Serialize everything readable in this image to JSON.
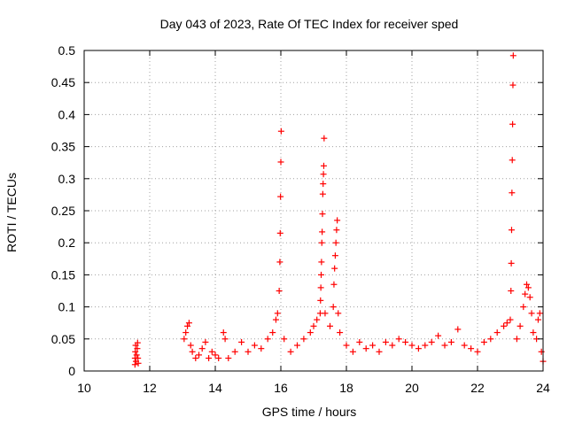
{
  "chart_data": {
    "type": "scatter",
    "title": "Day 043 of 2023, Rate Of TEC Index for receiver sped",
    "xlabel": "GPS time / hours",
    "ylabel": "ROTI / TECUs",
    "xlim": [
      10,
      24
    ],
    "ylim": [
      0,
      0.5
    ],
    "xticks": [
      10,
      12,
      14,
      16,
      18,
      20,
      22,
      24
    ],
    "xtick_labels": [
      "10",
      "12",
      "14",
      "16",
      "18",
      "20",
      "22",
      "24"
    ],
    "yticks": [
      0,
      0.05,
      0.1,
      0.15,
      0.2,
      0.25,
      0.3,
      0.35,
      0.4,
      0.45,
      0.5
    ],
    "ytick_labels": [
      "0",
      "0.05",
      "0.1",
      "0.15",
      "0.2",
      "0.25",
      "0.3",
      "0.35",
      "0.4",
      "0.45",
      "0.5"
    ],
    "grid": true,
    "marker": "+",
    "marker_color": "#ff0000",
    "series": [
      {
        "points": [
          [
            11.55,
            0.01
          ],
          [
            11.55,
            0.02
          ],
          [
            11.56,
            0.03
          ],
          [
            11.57,
            0.04
          ],
          [
            11.58,
            0.015
          ],
          [
            11.6,
            0.025
          ],
          [
            11.62,
            0.035
          ],
          [
            11.63,
            0.044
          ],
          [
            11.64,
            0.02
          ],
          [
            11.65,
            0.012
          ],
          [
            13.05,
            0.05
          ],
          [
            13.1,
            0.06
          ],
          [
            13.15,
            0.07
          ],
          [
            13.2,
            0.075
          ],
          [
            13.25,
            0.04
          ],
          [
            13.3,
            0.03
          ],
          [
            13.4,
            0.02
          ],
          [
            13.5,
            0.025
          ],
          [
            13.6,
            0.035
          ],
          [
            13.7,
            0.045
          ],
          [
            13.8,
            0.02
          ],
          [
            13.9,
            0.03
          ],
          [
            14.0,
            0.025
          ],
          [
            14.1,
            0.02
          ],
          [
            14.25,
            0.06
          ],
          [
            14.3,
            0.05
          ],
          [
            14.4,
            0.02
          ],
          [
            14.6,
            0.03
          ],
          [
            14.8,
            0.045
          ],
          [
            15.0,
            0.03
          ],
          [
            15.2,
            0.04
          ],
          [
            15.4,
            0.035
          ],
          [
            15.6,
            0.05
          ],
          [
            15.75,
            0.06
          ],
          [
            15.85,
            0.08
          ],
          [
            15.9,
            0.09
          ],
          [
            15.95,
            0.125
          ],
          [
            15.97,
            0.17
          ],
          [
            15.98,
            0.215
          ],
          [
            15.99,
            0.272
          ],
          [
            16.0,
            0.326
          ],
          [
            16.01,
            0.374
          ],
          [
            16.1,
            0.05
          ],
          [
            16.3,
            0.03
          ],
          [
            16.5,
            0.04
          ],
          [
            16.7,
            0.05
          ],
          [
            16.9,
            0.06
          ],
          [
            17.0,
            0.07
          ],
          [
            17.1,
            0.08
          ],
          [
            17.2,
            0.09
          ],
          [
            17.21,
            0.11
          ],
          [
            17.22,
            0.13
          ],
          [
            17.23,
            0.15
          ],
          [
            17.24,
            0.17
          ],
          [
            17.25,
            0.2
          ],
          [
            17.26,
            0.217
          ],
          [
            17.27,
            0.245
          ],
          [
            17.28,
            0.276
          ],
          [
            17.29,
            0.292
          ],
          [
            17.3,
            0.307
          ],
          [
            17.31,
            0.32
          ],
          [
            17.32,
            0.363
          ],
          [
            17.35,
            0.09
          ],
          [
            17.5,
            0.07
          ],
          [
            17.6,
            0.1
          ],
          [
            17.62,
            0.135
          ],
          [
            17.64,
            0.16
          ],
          [
            17.66,
            0.18
          ],
          [
            17.68,
            0.2
          ],
          [
            17.7,
            0.22
          ],
          [
            17.72,
            0.235
          ],
          [
            17.75,
            0.09
          ],
          [
            17.8,
            0.06
          ],
          [
            18.0,
            0.04
          ],
          [
            18.2,
            0.03
          ],
          [
            18.4,
            0.045
          ],
          [
            18.6,
            0.035
          ],
          [
            18.8,
            0.04
          ],
          [
            19.0,
            0.03
          ],
          [
            19.2,
            0.045
          ],
          [
            19.4,
            0.04
          ],
          [
            19.6,
            0.05
          ],
          [
            19.8,
            0.045
          ],
          [
            20.0,
            0.04
          ],
          [
            20.2,
            0.035
          ],
          [
            20.4,
            0.04
          ],
          [
            20.6,
            0.045
          ],
          [
            20.8,
            0.055
          ],
          [
            21.0,
            0.04
          ],
          [
            21.2,
            0.045
          ],
          [
            21.4,
            0.065
          ],
          [
            21.6,
            0.04
          ],
          [
            21.8,
            0.035
          ],
          [
            22.0,
            0.03
          ],
          [
            22.2,
            0.045
          ],
          [
            22.4,
            0.05
          ],
          [
            22.6,
            0.06
          ],
          [
            22.8,
            0.07
          ],
          [
            22.9,
            0.075
          ],
          [
            23.0,
            0.08
          ],
          [
            23.02,
            0.125
          ],
          [
            23.03,
            0.168
          ],
          [
            23.04,
            0.22
          ],
          [
            23.05,
            0.278
          ],
          [
            23.06,
            0.329
          ],
          [
            23.07,
            0.385
          ],
          [
            23.08,
            0.446
          ],
          [
            23.09,
            0.492
          ],
          [
            23.2,
            0.05
          ],
          [
            23.3,
            0.07
          ],
          [
            23.4,
            0.1
          ],
          [
            23.45,
            0.12
          ],
          [
            23.5,
            0.135
          ],
          [
            23.55,
            0.13
          ],
          [
            23.6,
            0.115
          ],
          [
            23.65,
            0.09
          ],
          [
            23.7,
            0.06
          ],
          [
            23.8,
            0.05
          ],
          [
            23.85,
            0.08
          ],
          [
            23.9,
            0.09
          ],
          [
            23.95,
            0.03
          ],
          [
            24.0,
            0.015
          ]
        ]
      }
    ]
  }
}
